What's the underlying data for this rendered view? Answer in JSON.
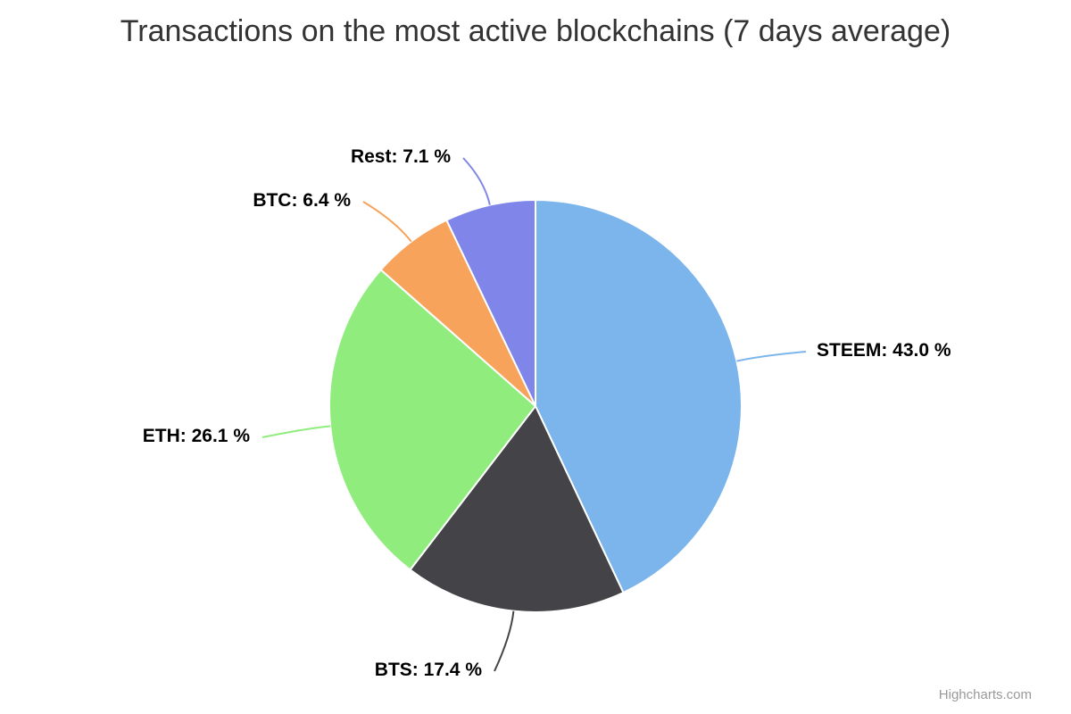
{
  "title": "Transactions on the most active blockchains (7 days average)",
  "credits": {
    "label": "Highcharts.com"
  },
  "chart_data": {
    "type": "pie",
    "title": "Transactions on the most active blockchains (7 days average)",
    "legend": false,
    "grid": false,
    "label_format": "{name}: {percent} %",
    "slices": [
      {
        "name": "STEEM",
        "percent": 43.0,
        "label": "STEEM: 43.0 %",
        "color": "#7cb5ec"
      },
      {
        "name": "BTS",
        "percent": 17.4,
        "label": "BTS: 17.4 %",
        "color": "#434348"
      },
      {
        "name": "ETH",
        "percent": 26.1,
        "label": "ETH: 26.1 %",
        "color": "#90ed7d"
      },
      {
        "name": "BTC",
        "percent": 6.4,
        "label": "BTC: 6.4 %",
        "color": "#f7a35c"
      },
      {
        "name": "Rest",
        "percent": 7.1,
        "label": "Rest: 7.1 %",
        "color": "#8085e9"
      }
    ],
    "slice_border_color": "#ffffff",
    "credits_text": "Highcharts.com"
  }
}
